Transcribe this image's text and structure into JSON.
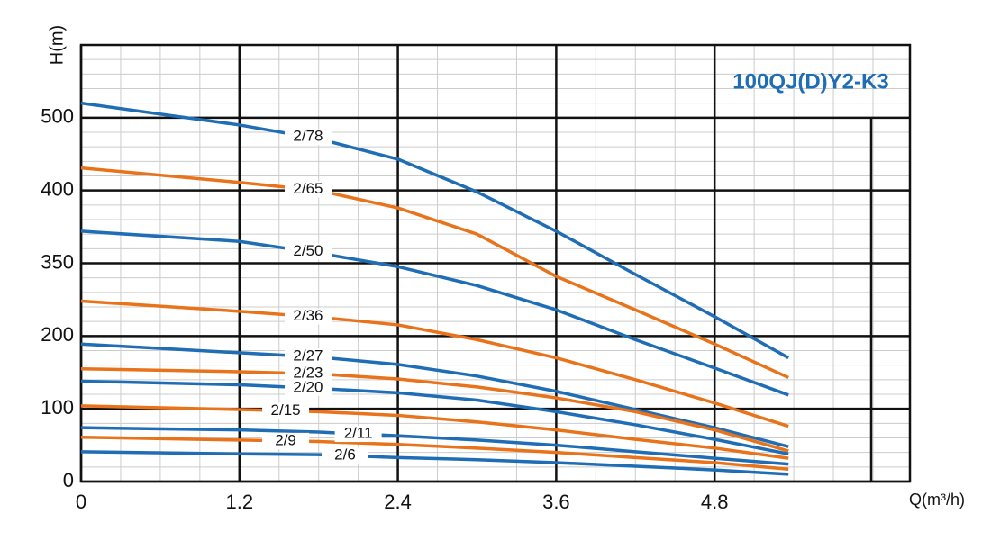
{
  "chart_data": {
    "type": "line",
    "title": "100QJ(D)Y2-K3",
    "y_label": "H(m)",
    "x_label": "Q(m³/h)",
    "x": [
      0,
      1.2,
      1.8,
      2.4,
      3.0,
      3.6,
      4.2,
      4.8,
      5.36
    ],
    "xlim": [
      0,
      6.28
    ],
    "xticks": [
      0,
      1.2,
      2.4,
      3.6,
      4.8
    ],
    "ylim": [
      0,
      600
    ],
    "yticks": [
      0,
      100,
      200,
      350,
      400,
      500
    ],
    "grid": true,
    "series": [
      {
        "name": "2/78",
        "color": "#1f6db5",
        "values": [
          520,
          490,
          471,
          443,
          399,
          372,
          327,
          240,
          170
        ]
      },
      {
        "name": "2/65",
        "color": "#e8731a",
        "values": [
          431,
          411,
          400,
          388,
          370,
          323,
          254,
          189,
          143
        ]
      },
      {
        "name": "2/50",
        "color": "#1f6db5",
        "values": [
          372,
          365,
          357,
          343,
          304,
          254,
          195,
          156,
          119
        ]
      },
      {
        "name": "2/36",
        "color": "#e8731a",
        "values": [
          272,
          251,
          239,
          223,
          195,
          170,
          140,
          108,
          76
        ]
      },
      {
        "name": "2/27",
        "color": "#1f6db5",
        "values": [
          189,
          177,
          171,
          161,
          145,
          124,
          99,
          74,
          48
        ]
      },
      {
        "name": "2/23",
        "color": "#e8731a",
        "values": [
          155,
          151,
          148,
          141,
          130,
          115,
          96,
          71,
          42
        ]
      },
      {
        "name": "2/20",
        "color": "#1f6db5",
        "values": [
          138,
          133,
          128,
          122,
          112,
          96,
          78,
          58,
          38
        ]
      },
      {
        "name": "2/15",
        "color": "#e8731a",
        "values": [
          104,
          99,
          96,
          91,
          82,
          71,
          58,
          46,
          32
        ]
      },
      {
        "name": "2/11",
        "color": "#1f6db5",
        "values": [
          74,
          71,
          68,
          63,
          57,
          50,
          41,
          32,
          24
        ]
      },
      {
        "name": "2/9",
        "color": "#e8731a",
        "values": [
          61,
          57,
          55,
          51,
          46,
          40,
          33,
          26,
          17
        ]
      },
      {
        "name": "2/6",
        "color": "#1f6db5",
        "values": [
          41,
          38,
          37,
          33,
          30,
          26,
          21,
          16,
          10
        ]
      }
    ]
  }
}
